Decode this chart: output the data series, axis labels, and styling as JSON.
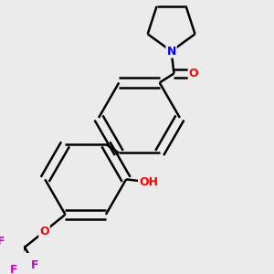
{
  "background_color": "#ebebeb",
  "bond_color": "#000000",
  "atom_colors": {
    "N": "#0000ff",
    "O": "#ff0000",
    "F": "#cc00cc",
    "C": "#000000"
  },
  "bond_width": 1.8,
  "figsize": [
    3.0,
    3.0
  ],
  "dpi": 100
}
